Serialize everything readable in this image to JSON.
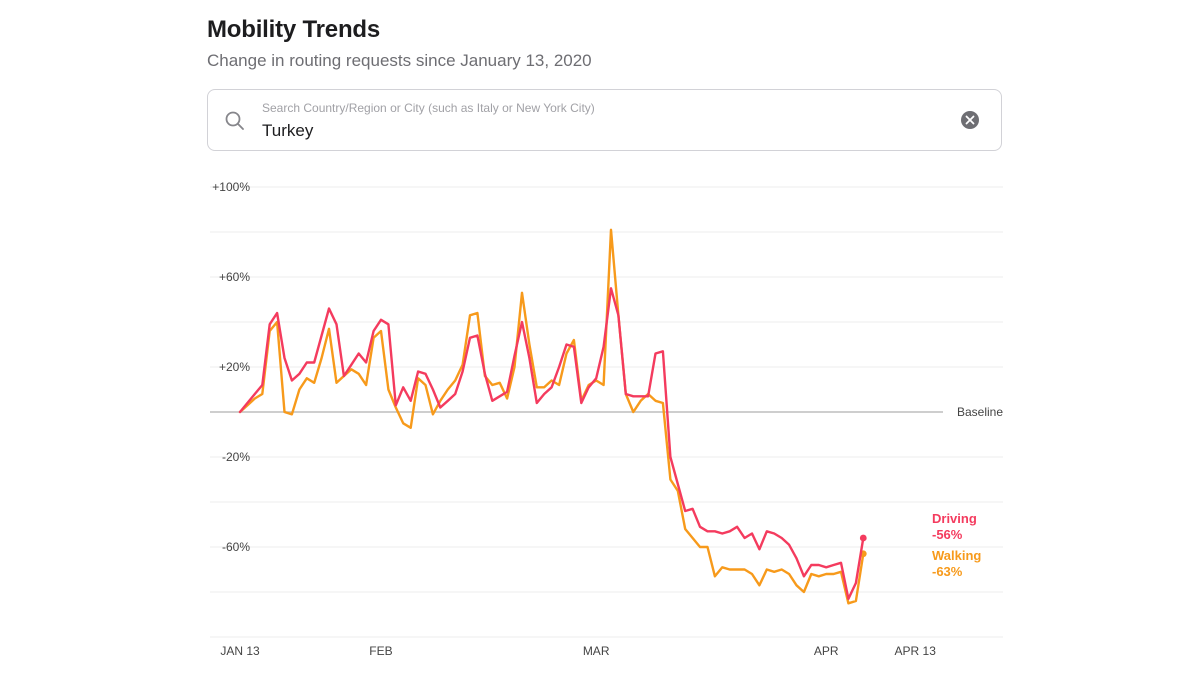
{
  "header": {
    "title": "Mobility Trends",
    "subtitle": "Change in routing requests since January 13, 2020"
  },
  "search": {
    "placeholder": "Search Country/Region or City (such as Italy or New York City)",
    "value": "Turkey",
    "icon": "search-icon",
    "clear_icon": "clear-icon"
  },
  "chart_data": {
    "type": "line",
    "title": "Mobility Trends",
    "subtitle": "Change in routing requests since January 13, 2020",
    "xlabel": "",
    "ylabel": "",
    "y_unit": "% change vs baseline",
    "ylim": [
      -100,
      100
    ],
    "grid": true,
    "y_ticks": [
      {
        "value": 100,
        "label": "+100%"
      },
      {
        "value": 60,
        "label": "+60%"
      },
      {
        "value": 20,
        "label": "+20%"
      },
      {
        "value": -20,
        "label": "-20%"
      },
      {
        "value": -60,
        "label": "-60%"
      }
    ],
    "x_ticks": [
      {
        "day": 0,
        "label": "JAN 13"
      },
      {
        "day": 19,
        "label": "FEB"
      },
      {
        "day": 48,
        "label": "MAR"
      },
      {
        "day": 79,
        "label": "APR"
      },
      {
        "day": 91,
        "label": "APR 13"
      }
    ],
    "baseline_label": "Baseline",
    "colors": {
      "driving": "#f43b5e",
      "walking": "#f79a1b",
      "baseline": "#bdbdbd",
      "grid": "#ececec"
    },
    "series": [
      {
        "name": "Driving",
        "label": "Driving",
        "end_label": "-56%",
        "color": "#f43b5e",
        "values": [
          0,
          4,
          8,
          12,
          39,
          44,
          24,
          14,
          17,
          22,
          22,
          34,
          46,
          39,
          16,
          21,
          26,
          22,
          36,
          41,
          39,
          3,
          11,
          5,
          18,
          17,
          10,
          2,
          5,
          8,
          18,
          33,
          34,
          17,
          5,
          7,
          9,
          25,
          40,
          24,
          4,
          8,
          11,
          20,
          30,
          29,
          4,
          11,
          15,
          29,
          55,
          43,
          8,
          7,
          7,
          7,
          26,
          27,
          -20,
          -32,
          -44,
          -43,
          -51,
          -53,
          -53,
          -54,
          -53,
          -51,
          -56,
          -54,
          -61,
          -53,
          -54,
          -56,
          -59,
          -65,
          -73,
          -68,
          -68,
          -69,
          -68,
          -67,
          -83,
          -76,
          -56
        ]
      },
      {
        "name": "Walking",
        "label": "Walking",
        "end_label": "-63%",
        "color": "#f79a1b",
        "values": [
          0,
          3,
          6,
          8,
          36,
          40,
          0,
          -1,
          10,
          15,
          13,
          24,
          37,
          13,
          16,
          19,
          17,
          12,
          33,
          36,
          10,
          2,
          -5,
          -7,
          15,
          12,
          -1,
          5,
          10,
          14,
          21,
          43,
          44,
          16,
          12,
          13,
          6,
          20,
          53,
          30,
          11,
          11,
          14,
          12,
          26,
          32,
          5,
          12,
          14,
          12,
          81,
          43,
          8,
          0,
          5,
          8,
          5,
          4,
          -30,
          -35,
          -52,
          -56,
          -60,
          -60,
          -73,
          -69,
          -70,
          -70,
          -70,
          -72,
          -77,
          -70,
          -71,
          -70,
          -72,
          -77,
          -80,
          -72,
          -73,
          -72,
          -72,
          -71,
          -85,
          -84,
          -63
        ]
      }
    ]
  }
}
